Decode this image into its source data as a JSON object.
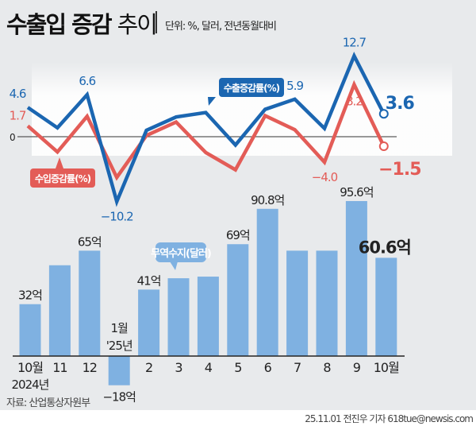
{
  "header": {
    "title_bold": "수출입 증감",
    "title_light": "추이",
    "unit": "단위: %, 달러, 전년동월대비"
  },
  "source": "자료: 산업통상자원부",
  "credit": "25.11.01 전진우 기자 618tue@newsis.com",
  "colors": {
    "export": "#1b66b1",
    "import": "#e35c57",
    "bar": "#7fb1e1",
    "background": "#e8eaec"
  },
  "chart_data": [
    {
      "type": "line",
      "categories": [
        "10월",
        "11",
        "12",
        "1월",
        "2",
        "3",
        "4",
        "5",
        "6",
        "7",
        "8",
        "9",
        "10월"
      ],
      "zero_label": "0",
      "series": [
        {
          "name": "수출증감률(%)",
          "values": [
            4.6,
            1.4,
            6.6,
            -10.2,
            1.0,
            3.1,
            3.8,
            -1.3,
            4.3,
            5.9,
            1.3,
            12.7,
            3.6
          ],
          "labels": [
            "4.6",
            "",
            "6.6",
            "−10.2",
            "",
            "",
            "",
            "",
            "",
            "5.9",
            "",
            "12.7",
            "3.6"
          ]
        },
        {
          "name": "수입증감률(%)",
          "values": [
            1.7,
            -2.4,
            3.2,
            -6.4,
            0.2,
            2.3,
            -2.5,
            -5.2,
            3.3,
            1.1,
            -4.0,
            8.2,
            -1.5
          ],
          "labels": [
            "1.7",
            "",
            "",
            "",
            "",
            "",
            "",
            "",
            "",
            "",
            "−4.0",
            "8.2",
            "−1.5"
          ]
        }
      ]
    },
    {
      "type": "bar",
      "categories": [
        "10월",
        "11",
        "12",
        "1월",
        "2",
        "3",
        "4",
        "5",
        "6",
        "7",
        "8",
        "9",
        "10월"
      ],
      "category_sublabels": {
        "0": "2024년",
        "3": "'25년"
      },
      "series": [
        {
          "name": "무역수지(달러)",
          "values": [
            32,
            56,
            65,
            -18,
            41,
            48,
            49,
            69,
            90.8,
            65,
            65,
            95.6,
            60.6
          ],
          "labels": [
            "32억",
            "",
            "65억",
            "−18억",
            "41억",
            "",
            "",
            "69억",
            "90.8억",
            "",
            "",
            "95.6억",
            "60.6억"
          ]
        }
      ]
    }
  ]
}
